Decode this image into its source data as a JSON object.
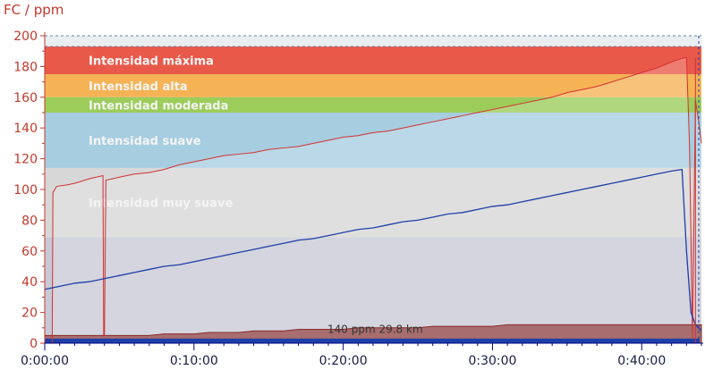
{
  "chart_data": {
    "type": "line",
    "ylabel": "FC / ppm",
    "ylim": [
      0,
      200
    ],
    "xlim": [
      0,
      44
    ],
    "x_unit": "min",
    "yticks": [
      0,
      20,
      40,
      60,
      80,
      100,
      120,
      140,
      160,
      180,
      200
    ],
    "xticks": [
      "0:00:00",
      "0:10:00",
      "0:20:00",
      "0:30:00",
      "0:40:00"
    ],
    "xtick_values": [
      0,
      10,
      20,
      30,
      40
    ],
    "zones": [
      {
        "label": "Intensidad máxima",
        "from": 175,
        "to": 193,
        "color": "#e8594a"
      },
      {
        "label": "Intensidad alta",
        "from": 160,
        "to": 175,
        "color": "#f5b356"
      },
      {
        "label": "Intensidad moderada",
        "from": 150,
        "to": 160,
        "color": "#9ccc5a"
      },
      {
        "label": "Intensidad suave",
        "from": 114,
        "to": 150,
        "color": "#a7cde0"
      },
      {
        "label": "Intensidad muy suave",
        "from": 69,
        "to": 114,
        "color": "#d7d7d7"
      }
    ],
    "zone_below_color": "#c8c9d6",
    "annotation": "140 ppm 29.8 km",
    "series": [
      {
        "color": "#d43030",
        "x": [
          0,
          0.5,
          0.55,
          0.8,
          1.5,
          2,
          3,
          3.9,
          3.95,
          4.0,
          4.1,
          5,
          6,
          7,
          8,
          9,
          10,
          11,
          12,
          13,
          14,
          15,
          16,
          17,
          18,
          19,
          20,
          21,
          22,
          23,
          24,
          25,
          26,
          27,
          28,
          29,
          30,
          31,
          32,
          33,
          34,
          35,
          36,
          37,
          38,
          39,
          40,
          41,
          42,
          42.6,
          43.0,
          43.2,
          43.4,
          43.6,
          43.8,
          44
        ],
        "y": [
          0,
          0,
          98,
          102,
          103,
          104,
          107,
          109,
          5,
          5,
          106,
          108,
          110,
          111,
          113,
          116,
          118,
          120,
          122,
          123,
          124,
          126,
          127,
          128,
          130,
          132,
          134,
          135,
          137,
          138,
          140,
          142,
          144,
          146,
          148,
          150,
          152,
          154,
          156,
          158,
          160,
          163,
          165,
          167,
          170,
          173,
          176,
          179,
          183,
          185,
          186,
          130,
          3,
          158,
          145,
          130
        ]
      },
      {
        "color": "#1f3fa6",
        "x": [
          0,
          1,
          2,
          3,
          4,
          5,
          6,
          7,
          8,
          9,
          10,
          11,
          12,
          13,
          14,
          15,
          16,
          17,
          18,
          19,
          20,
          21,
          22,
          23,
          24,
          25,
          26,
          27,
          28,
          29,
          30,
          31,
          32,
          33,
          34,
          35,
          36,
          37,
          38,
          39,
          40,
          41,
          42,
          42.7,
          43.0,
          43.3,
          43.6,
          44
        ],
        "y": [
          35,
          37,
          39,
          40,
          42,
          44,
          46,
          48,
          50,
          51,
          53,
          55,
          57,
          59,
          61,
          63,
          65,
          67,
          68,
          70,
          72,
          74,
          75,
          77,
          79,
          80,
          82,
          84,
          85,
          87,
          89,
          90,
          92,
          94,
          96,
          98,
          100,
          102,
          104,
          106,
          108,
          110,
          112,
          113,
          60,
          20,
          12,
          8
        ]
      },
      {
        "color": "#8b2a2a",
        "x": [
          0,
          1,
          2,
          3,
          4,
          5,
          6,
          7,
          8,
          9,
          10,
          11,
          12,
          13,
          14,
          15,
          16,
          17,
          18,
          19,
          20,
          21,
          22,
          23,
          24,
          25,
          26,
          27,
          28,
          29,
          30,
          31,
          32,
          33,
          34,
          35,
          36,
          37,
          38,
          39,
          40,
          41,
          42,
          43,
          44
        ],
        "y": [
          5,
          5,
          5,
          5,
          5,
          5,
          5,
          5,
          6,
          6,
          6,
          7,
          7,
          7,
          8,
          8,
          8,
          9,
          9,
          9,
          9,
          10,
          10,
          10,
          10,
          10,
          11,
          11,
          11,
          11,
          11,
          12,
          12,
          12,
          12,
          12,
          12,
          12,
          12,
          12,
          12,
          12,
          12,
          12,
          12
        ]
      }
    ],
    "bottom_bar": {
      "y": 3,
      "color": "#1f3fa6"
    }
  }
}
